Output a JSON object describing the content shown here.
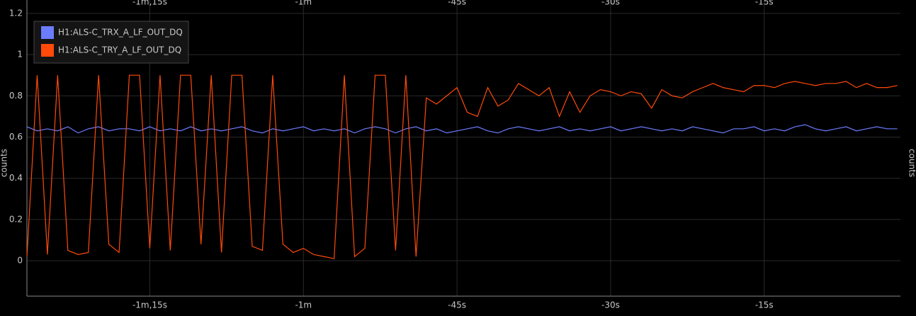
{
  "chart_data": {
    "type": "line",
    "y_label": "counts",
    "x": [
      -87,
      -86,
      -85,
      -84,
      -83,
      -82,
      -81,
      -80,
      -79,
      -78,
      -77,
      -76,
      -75,
      -74,
      -73,
      -72,
      -71,
      -70,
      -69,
      -68,
      -67,
      -66,
      -65,
      -64,
      -63,
      -62,
      -61,
      -60,
      -59,
      -58,
      -57,
      -56,
      -55,
      -54,
      -53,
      -52,
      -51,
      -50,
      -49,
      -48,
      -47,
      -46,
      -45,
      -44,
      -43,
      -42,
      -41,
      -40,
      -39,
      -38,
      -37,
      -36,
      -35,
      -34,
      -33,
      -32,
      -31,
      -30,
      -29,
      -28,
      -27,
      -26,
      -25,
      -24,
      -23,
      -22,
      -21,
      -20,
      -19,
      -18,
      -17,
      -16,
      -15,
      -14,
      -13,
      -12,
      -11,
      -10,
      -9,
      -8,
      -7,
      -6,
      -5,
      -4,
      -3,
      -2
    ],
    "series": [
      {
        "name": "H1:ALS-C_TRX_A_LF_OUT_DQ",
        "color": "#6b7cff",
        "values": [
          0.65,
          0.63,
          0.64,
          0.63,
          0.65,
          0.62,
          0.64,
          0.65,
          0.63,
          0.64,
          0.64,
          0.63,
          0.65,
          0.63,
          0.64,
          0.63,
          0.65,
          0.63,
          0.64,
          0.63,
          0.64,
          0.65,
          0.63,
          0.62,
          0.64,
          0.63,
          0.64,
          0.65,
          0.63,
          0.64,
          0.63,
          0.64,
          0.62,
          0.64,
          0.65,
          0.64,
          0.62,
          0.64,
          0.65,
          0.63,
          0.64,
          0.62,
          0.63,
          0.64,
          0.65,
          0.63,
          0.62,
          0.64,
          0.65,
          0.64,
          0.63,
          0.64,
          0.65,
          0.63,
          0.64,
          0.63,
          0.64,
          0.65,
          0.63,
          0.64,
          0.65,
          0.64,
          0.63,
          0.64,
          0.63,
          0.65,
          0.64,
          0.63,
          0.62,
          0.64,
          0.64,
          0.65,
          0.63,
          0.64,
          0.63,
          0.65,
          0.66,
          0.64,
          0.63,
          0.64,
          0.65,
          0.63,
          0.64,
          0.65,
          0.64,
          0.64
        ]
      },
      {
        "name": "H1:ALS-C_TRY_A_LF_OUT_DQ",
        "color": "#ff4a0a",
        "values": [
          0.02,
          0.9,
          0.03,
          0.9,
          0.05,
          0.03,
          0.04,
          0.9,
          0.08,
          0.04,
          0.9,
          0.9,
          0.06,
          0.9,
          0.05,
          0.9,
          0.9,
          0.08,
          0.9,
          0.04,
          0.9,
          0.9,
          0.07,
          0.05,
          0.9,
          0.08,
          0.04,
          0.06,
          0.03,
          0.02,
          0.01,
          0.9,
          0.02,
          0.06,
          0.9,
          0.9,
          0.05,
          0.9,
          0.02,
          0.79,
          0.76,
          0.8,
          0.84,
          0.72,
          0.7,
          0.84,
          0.75,
          0.78,
          0.86,
          0.83,
          0.8,
          0.84,
          0.7,
          0.82,
          0.72,
          0.8,
          0.83,
          0.82,
          0.8,
          0.82,
          0.81,
          0.74,
          0.83,
          0.8,
          0.79,
          0.82,
          0.84,
          0.86,
          0.84,
          0.83,
          0.82,
          0.85,
          0.85,
          0.84,
          0.86,
          0.87,
          0.86,
          0.85,
          0.86,
          0.86,
          0.87,
          0.84,
          0.86,
          0.84,
          0.84,
          0.85
        ]
      }
    ],
    "xlim": [
      -87,
      -1.7
    ],
    "ylim": [
      -0.172,
      1.265
    ],
    "xticks": [
      {
        "value": -75,
        "label": "-1m,15s"
      },
      {
        "value": -60,
        "label": "-1m"
      },
      {
        "value": -45,
        "label": "-45s"
      },
      {
        "value": -30,
        "label": "-30s"
      },
      {
        "value": -15,
        "label": "-15s"
      }
    ],
    "yticks": [
      0,
      0.2,
      0.4,
      0.6,
      0.8,
      1,
      1.2
    ],
    "grid": true,
    "legend": "top-left"
  }
}
